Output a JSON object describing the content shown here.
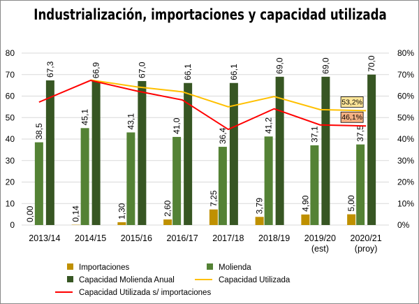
{
  "chart_data": {
    "type": "bar",
    "title": "Industrialización, importaciones y capacidad utilizada",
    "categories": [
      "2013/14",
      "2014/15",
      "2015/16",
      "2016/17",
      "2017/18",
      "2018/19",
      "2019/20\n(est)",
      "2020/21\n(proy)"
    ],
    "ylim": [
      0,
      80
    ],
    "y_ticks": [
      0,
      10,
      20,
      30,
      40,
      50,
      60,
      70,
      80
    ],
    "y2lim": [
      0,
      80
    ],
    "y2_ticks": [
      "0%",
      "10%",
      "20%",
      "30%",
      "40%",
      "50%",
      "60%",
      "70%",
      "80%"
    ],
    "grid": true,
    "legend_placement": "bottom",
    "series": [
      {
        "name": "Importaciones",
        "kind": "bar",
        "color": "#bf9000",
        "values": [
          0.0,
          0.14,
          1.3,
          2.6,
          7.25,
          3.79,
          4.9,
          5.0
        ],
        "labels": [
          "0,00",
          "0,14",
          "1,30",
          "2,60",
          "7,25",
          "3,79",
          "4,90",
          "5,00"
        ]
      },
      {
        "name": "Molienda",
        "kind": "bar",
        "color": "#548235",
        "values": [
          38.5,
          45.1,
          43.1,
          41.0,
          36.4,
          41.2,
          37.1,
          37.5
        ],
        "labels": [
          "38,5",
          "45,1",
          "43,1",
          "41,0",
          "36,4",
          "41,2",
          "37,1",
          "37,5"
        ]
      },
      {
        "name": "Capacidad Molienda Anual",
        "kind": "bar",
        "color": "#375623",
        "values": [
          67.3,
          66.9,
          67.0,
          66.1,
          66.1,
          69.0,
          69.0,
          70.0
        ],
        "labels": [
          "67,3",
          "66,9",
          "67,0",
          "66,1",
          "66,1",
          "69,0",
          "69,0",
          "70,0"
        ]
      },
      {
        "name": "Capacidad Utilizada",
        "kind": "line",
        "axis": "right",
        "color": "#ffc000",
        "values": [
          null,
          67.5,
          64.3,
          62.0,
          55.0,
          59.8,
          53.7,
          53.2
        ],
        "end_label": "53,2%",
        "end_label_bg": "#ffe699"
      },
      {
        "name": "Capacidad Utilizada s/ importaciones",
        "kind": "line",
        "axis": "right",
        "color": "#ff0000",
        "values": [
          57.2,
          67.3,
          62.4,
          58.2,
          44.5,
          54.1,
          46.6,
          46.1
        ],
        "end_label": "46,1%",
        "end_label_bg": "#f4b183"
      }
    ]
  }
}
